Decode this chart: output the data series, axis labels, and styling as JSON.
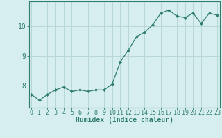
{
  "x": [
    0,
    1,
    2,
    3,
    4,
    5,
    6,
    7,
    8,
    9,
    10,
    11,
    12,
    13,
    14,
    15,
    16,
    17,
    18,
    19,
    20,
    21,
    22,
    23
  ],
  "y": [
    7.7,
    7.5,
    7.7,
    7.85,
    7.95,
    7.8,
    7.85,
    7.8,
    7.85,
    7.85,
    8.05,
    8.8,
    9.2,
    9.65,
    9.8,
    10.05,
    10.45,
    10.55,
    10.35,
    10.3,
    10.45,
    10.1,
    10.45,
    10.38
  ],
  "line_color": "#2e7d6e",
  "marker_color": "#2e7d6e",
  "bg_color": "#d6eeee",
  "grid_color": "#b8d8d8",
  "axis_color": "#2e7d6e",
  "xlabel": "Humidex (Indice chaleur)",
  "xlabel_fontsize": 7,
  "tick_fontsize": 6,
  "ytick_fontsize": 7,
  "yticks": [
    8,
    9,
    10
  ],
  "xticks": [
    0,
    1,
    2,
    3,
    4,
    5,
    6,
    7,
    8,
    9,
    10,
    11,
    12,
    13,
    14,
    15,
    16,
    17,
    18,
    19,
    20,
    21,
    22,
    23
  ],
  "xlim": [
    -0.3,
    23.3
  ],
  "ylim": [
    7.25,
    10.85
  ]
}
